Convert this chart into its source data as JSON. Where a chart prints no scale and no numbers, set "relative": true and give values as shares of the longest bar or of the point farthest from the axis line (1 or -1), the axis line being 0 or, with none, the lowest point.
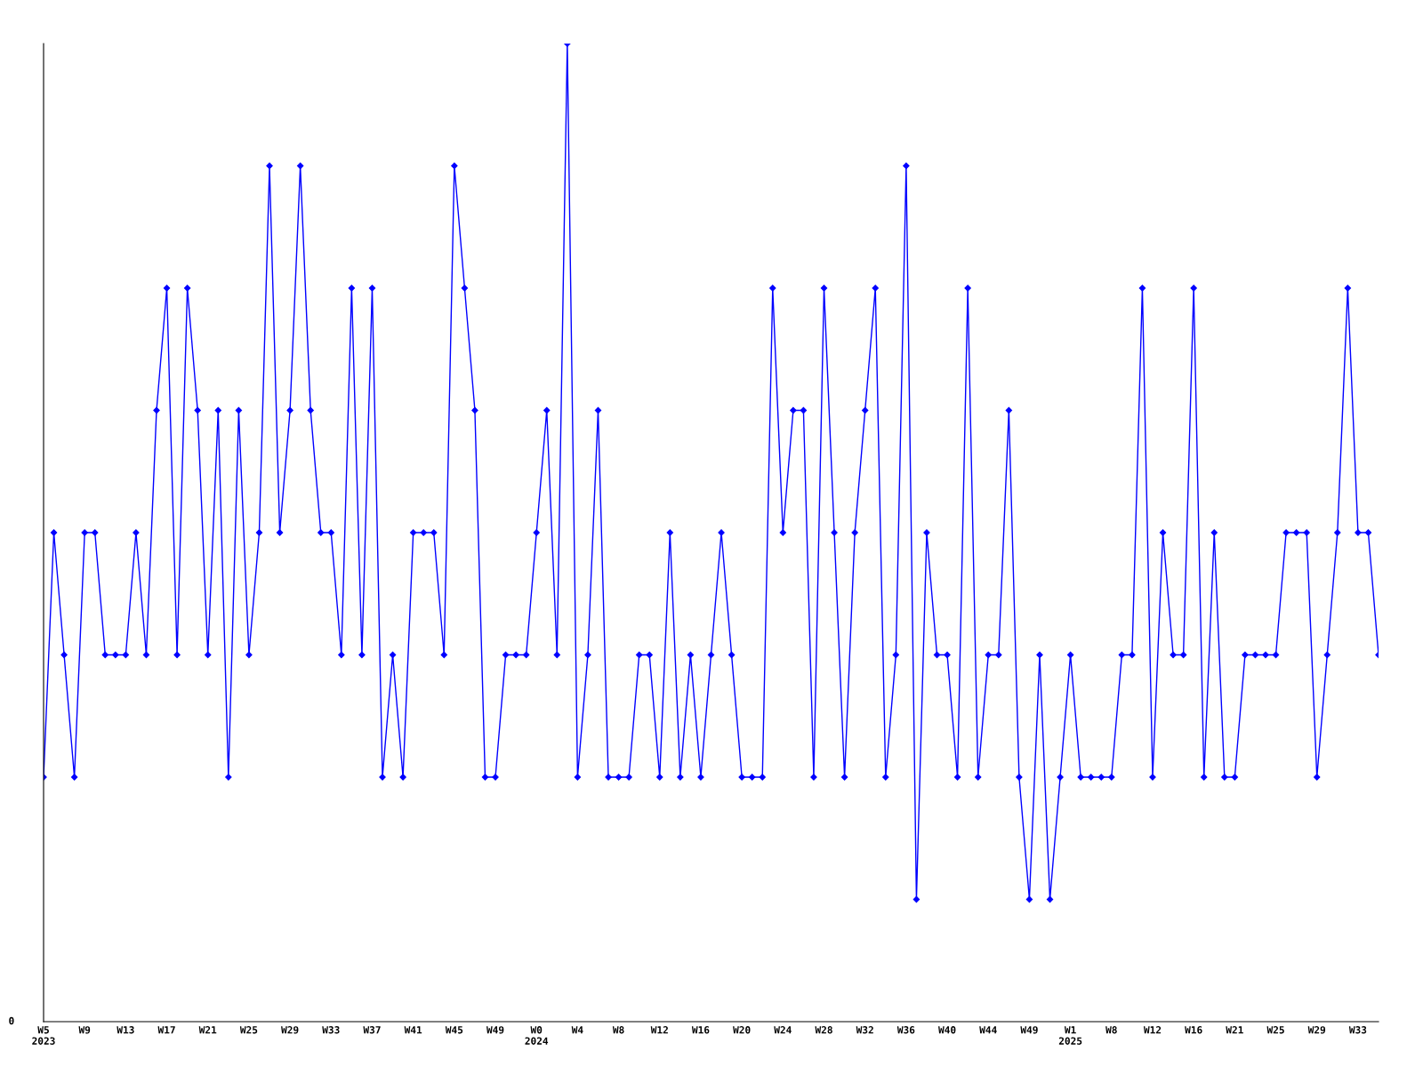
{
  "chart_data": {
    "type": "line",
    "relative": true,
    "marker": "diamond",
    "line_style": "solid",
    "grid": false,
    "annotations": [
      "0"
    ],
    "categories": [
      "W5\n2023",
      null,
      null,
      null,
      "W9",
      null,
      null,
      null,
      "W13",
      null,
      null,
      null,
      "W17",
      null,
      null,
      null,
      "W21",
      null,
      null,
      null,
      "W25",
      null,
      null,
      null,
      "W29",
      null,
      null,
      null,
      "W33",
      null,
      null,
      null,
      "W37",
      null,
      null,
      null,
      "W41",
      null,
      null,
      null,
      "W45",
      null,
      null,
      null,
      "W49",
      null,
      null,
      null,
      "W0\n2024",
      null,
      null,
      null,
      "W4",
      null,
      null,
      null,
      "W8",
      null,
      null,
      null,
      "W12",
      null,
      null,
      null,
      "W16",
      null,
      null,
      null,
      "W20",
      null,
      null,
      null,
      "W24",
      null,
      null,
      null,
      "W28",
      null,
      null,
      null,
      "W32",
      null,
      null,
      null,
      "W36",
      null,
      null,
      null,
      "W40",
      null,
      null,
      null,
      "W44",
      null,
      null,
      null,
      "W49",
      null,
      null,
      null,
      "W1\n2025",
      null,
      null,
      null,
      "W8",
      null,
      null,
      null,
      "W12",
      null,
      null,
      null,
      "W16",
      null,
      null,
      null,
      "W21",
      null,
      null,
      null,
      "W25",
      null,
      null,
      null,
      "W29",
      null,
      null,
      null,
      "W33",
      null,
      null
    ],
    "series": [
      {
        "color": "#0000ff",
        "values": [
          0.25,
          0.5,
          0.375,
          0.25,
          0.5,
          0.5,
          0.375,
          0.375,
          0.375,
          0.5,
          0.375,
          0.625,
          0.75,
          0.375,
          0.75,
          0.625,
          0.375,
          0.625,
          0.25,
          0.625,
          0.375,
          0.5,
          0.875,
          0.5,
          0.625,
          0.875,
          0.625,
          0.5,
          0.5,
          0.375,
          0.75,
          0.375,
          0.75,
          0.25,
          0.375,
          0.25,
          0.5,
          0.5,
          0.5,
          0.375,
          0.875,
          0.75,
          0.625,
          0.25,
          0.25,
          0.375,
          0.375,
          0.375,
          0.5,
          0.625,
          0.375,
          1,
          0.25,
          0.375,
          0.625,
          0.25,
          0.25,
          0.25,
          0.375,
          0.375,
          0.25,
          0.5,
          0.25,
          0.375,
          0.25,
          0.375,
          0.5,
          0.375,
          0.25,
          0.25,
          0.25,
          0.75,
          0.5,
          0.625,
          0.625,
          0.25,
          0.75,
          0.5,
          0.25,
          0.5,
          0.625,
          0.75,
          0.25,
          0.375,
          0.875,
          0.125,
          0.5,
          0.375,
          0.375,
          0.25,
          0.75,
          0.25,
          0.375,
          0.375,
          0.625,
          0.25,
          0.125,
          0.375,
          0.125,
          0.25,
          0.375,
          0.25,
          0.25,
          0.25,
          0.25,
          0.375,
          0.375,
          0.75,
          0.25,
          0.5,
          0.375,
          0.375,
          0.75,
          0.25,
          0.5,
          0.25,
          0.25,
          0.375,
          0.375,
          0.375,
          0.375,
          0.5,
          0.5,
          0.5,
          0.25,
          0.375,
          0.5,
          0.75,
          0.5,
          0.5,
          0.375
        ]
      }
    ]
  }
}
